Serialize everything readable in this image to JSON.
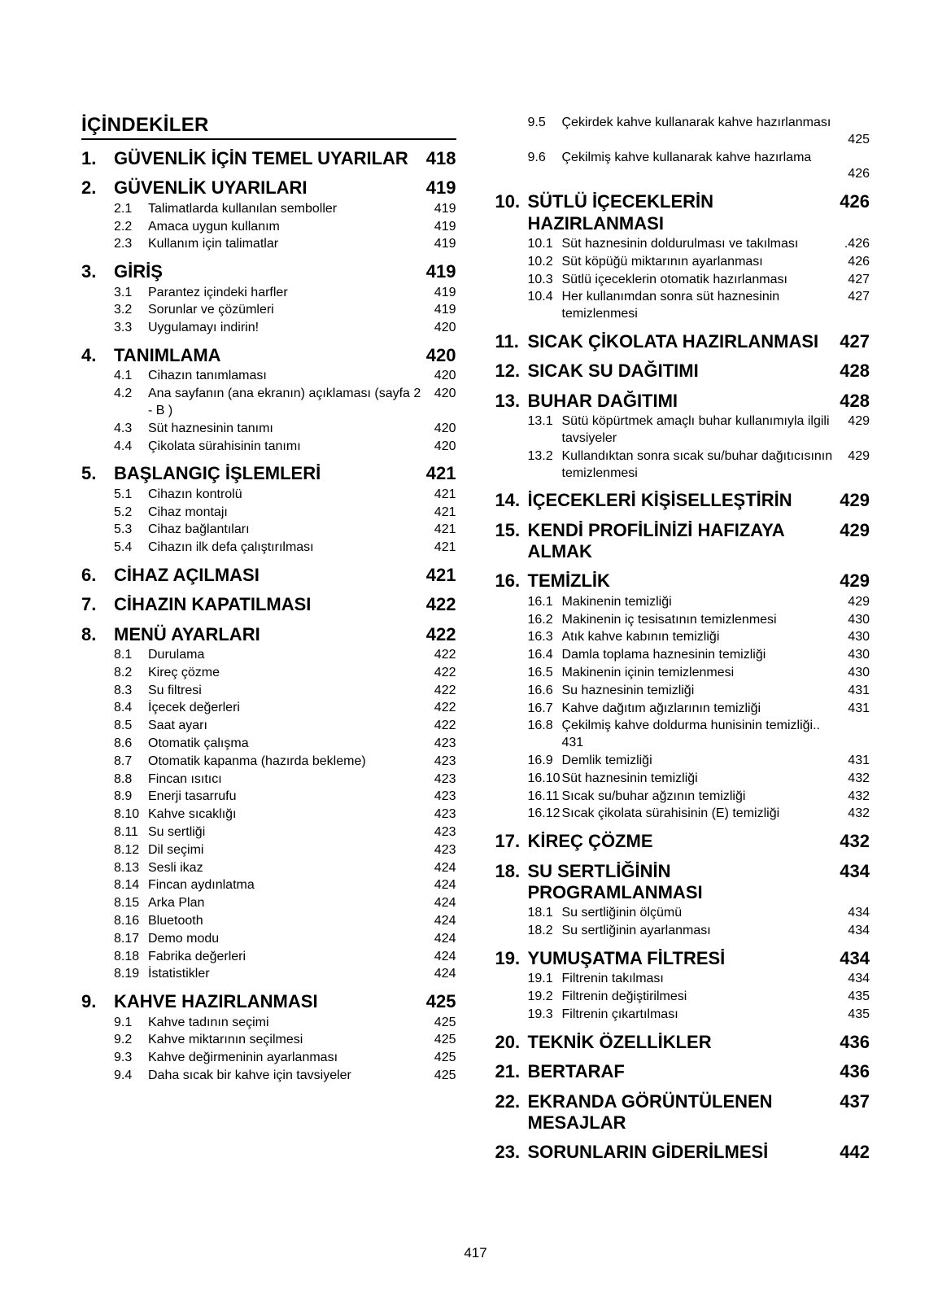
{
  "title": "İÇİNDEKİLER",
  "page_number": "417",
  "left": [
    {
      "n": "1.",
      "t": "GÜVENLİK İÇİN TEMEL UYARILAR",
      "p": "418"
    },
    {
      "n": "2.",
      "t": "GÜVENLİK UYARILARI",
      "p": "419",
      "items": [
        {
          "n": "2.1",
          "t": "Talimatlarda kullanılan semboller",
          "p": "419"
        },
        {
          "n": "2.2",
          "t": "Amaca uygun kullanım",
          "p": "419"
        },
        {
          "n": "2.3",
          "t": "Kullanım için talimatlar",
          "p": "419"
        }
      ]
    },
    {
      "n": "3.",
      "t": "GİRİŞ",
      "p": "419",
      "items": [
        {
          "n": "3.1",
          "t": "Parantez içindeki harfler",
          "p": "419"
        },
        {
          "n": "3.2",
          "t": "Sorunlar ve çözümleri",
          "p": "419"
        },
        {
          "n": "3.3",
          "t": "Uygulamayı indirin!",
          "p": "420"
        }
      ]
    },
    {
      "n": "4.",
      "t": "TANIMLAMA",
      "p": "420",
      "items": [
        {
          "n": "4.1",
          "t": "Cihazın tanımlaması",
          "p": "420"
        },
        {
          "n": "4.2",
          "t": "Ana sayfanın (ana ekranın) açıklaması (sayfa 2 -     B  )",
          "p": "420"
        },
        {
          "n": "4.3",
          "t": "Süt haznesinin tanımı",
          "p": "420"
        },
        {
          "n": "4.4",
          "t": "Çikolata sürahisinin tanımı",
          "p": "420"
        }
      ]
    },
    {
      "n": "5.",
      "t": "BAŞLANGIÇ İŞLEMLERİ",
      "p": "421",
      "items": [
        {
          "n": "5.1",
          "t": "Cihazın kontrolü",
          "p": "421"
        },
        {
          "n": "5.2",
          "t": "Cihaz montajı",
          "p": "421"
        },
        {
          "n": "5.3",
          "t": "Cihaz bağlantıları",
          "p": "421"
        },
        {
          "n": "5.4",
          "t": "Cihazın ilk defa çalıştırılması",
          "p": "421"
        }
      ]
    },
    {
      "n": "6.",
      "t": "CİHAZ AÇILMASI",
      "p": "421"
    },
    {
      "n": "7.",
      "t": "CİHAZIN KAPATILMASI",
      "p": "422"
    },
    {
      "n": "8.",
      "t": "MENÜ AYARLARI",
      "p": "422",
      "items": [
        {
          "n": "8.1",
          "t": "Durulama",
          "p": "422"
        },
        {
          "n": "8.2",
          "t": "Kireç çözme",
          "p": "422"
        },
        {
          "n": "8.3",
          "t": "Su filtresi",
          "p": "422"
        },
        {
          "n": "8.4",
          "t": "İçecek değerleri",
          "p": "422"
        },
        {
          "n": "8.5",
          "t": "Saat ayarı",
          "p": "422"
        },
        {
          "n": "8.6",
          "t": "Otomatik çalışma",
          "p": "423"
        },
        {
          "n": "8.7",
          "t": "Otomatik kapanma (hazırda bekleme)",
          "p": "423"
        },
        {
          "n": "8.8",
          "t": "Fincan ısıtıcı",
          "p": "423"
        },
        {
          "n": "8.9",
          "t": "Enerji tasarrufu",
          "p": "423"
        },
        {
          "n": "8.10",
          "t": "Kahve sıcaklığı",
          "p": "423"
        },
        {
          "n": "8.11",
          "t": "Su sertliği",
          "p": "423"
        },
        {
          "n": "8.12",
          "t": "Dil seçimi",
          "p": "423"
        },
        {
          "n": "8.13",
          "t": "Sesli ikaz",
          "p": "424"
        },
        {
          "n": "8.14",
          "t": "Fincan aydınlatma",
          "p": "424"
        },
        {
          "n": "8.15",
          "t": "Arka Plan",
          "p": "424"
        },
        {
          "n": "8.16",
          "t": "Bluetooth",
          "p": "424"
        },
        {
          "n": "8.17",
          "t": "Demo modu",
          "p": "424"
        },
        {
          "n": "8.18",
          "t": "Fabrika değerleri",
          "p": "424"
        },
        {
          "n": "8.19",
          "t": "İstatistikler",
          "p": "424"
        }
      ]
    },
    {
      "n": "9.",
      "t": "KAHVE HAZIRLANMASI",
      "p": "425",
      "items": [
        {
          "n": "9.1",
          "t": "Kahve tadının seçimi",
          "p": "425"
        },
        {
          "n": "9.2",
          "t": "Kahve miktarının seçilmesi",
          "p": "425"
        },
        {
          "n": "9.3",
          "t": "Kahve değirmeninin ayarlanması",
          "p": "425"
        },
        {
          "n": "9.4",
          "t": "Daha sıcak bir kahve için tavsiyeler",
          "p": "425"
        }
      ]
    }
  ],
  "right_pre_items": [
    {
      "n": "9.5",
      "t": "Çekirdek kahve kullanarak kahve hazırlanması",
      "p": "425"
    },
    {
      "n": "9.6",
      "t": "Çekilmiş kahve kullanarak kahve hazırlama",
      "p": "426"
    }
  ],
  "right": [
    {
      "n": "10.",
      "t": "SÜTLÜ İÇECEKLERİN HAZIRLANMASI",
      "p": "426",
      "items": [
        {
          "n": "10.1",
          "t": "Süt haznesinin doldurulması ve takılması",
          "p": ".426"
        },
        {
          "n": "10.2",
          "t": "Süt köpüğü miktarının ayarlanması",
          "p": "426"
        },
        {
          "n": "10.3",
          "t": "Sütlü içeceklerin otomatik hazırlanması",
          "p": "427"
        },
        {
          "n": "10.4",
          "t": "Her kullanımdan sonra süt haznesinin temizlenmesi",
          "p": "427"
        }
      ]
    },
    {
      "n": "11.",
      "t": "SICAK ÇİKOLATA HAZIRLANMASI",
      "p": "427"
    },
    {
      "n": "12.",
      "t": "SICAK SU DAĞITIMI",
      "p": "428"
    },
    {
      "n": "13.",
      "t": "BUHAR DAĞITIMI",
      "p": "428",
      "items": [
        {
          "n": "13.1",
          "t": "Sütü köpürtmek amaçlı buhar kullanımıyla ilgili tavsiyeler",
          "p": "429"
        },
        {
          "n": "13.2",
          "t": "Kullandıktan sonra sıcak su/buhar dağıtıcısının temizlenmesi",
          "p": "429"
        }
      ]
    },
    {
      "n": "14.",
      "t": "İÇECEKLERİ KİŞİSELLEŞTİRİN",
      "p": "429"
    },
    {
      "n": "15.",
      "t": "KENDİ PROFİLİNİZİ HAFIZAYA ALMAK",
      "p": "429"
    },
    {
      "n": "16.",
      "t": "TEMİZLİK",
      "p": "429",
      "items": [
        {
          "n": "16.1",
          "t": "Makinenin temizliği",
          "p": "429"
        },
        {
          "n": "16.2",
          "t": "Makinenin iç tesisatının temizlenmesi",
          "p": "430"
        },
        {
          "n": "16.3",
          "t": "Atık kahve kabının temizliği",
          "p": "430"
        },
        {
          "n": "16.4",
          "t": "Damla toplama haznesinin temizliği",
          "p": "430"
        },
        {
          "n": "16.5",
          "t": "Makinenin içinin temizlenmesi",
          "p": "430"
        },
        {
          "n": "16.6",
          "t": "Su haznesinin temizliği",
          "p": "431"
        },
        {
          "n": "16.7",
          "t": "Kahve dağıtım ağızlarının temizliği",
          "p": "431"
        },
        {
          "n": "16.8",
          "t": "Çekilmiş kahve doldurma hunisinin temizliği",
          "p2": "431"
        },
        {
          "n": "16.9",
          "t": "Demlik temizliği",
          "p": "431"
        },
        {
          "n": "16.10",
          "t": "Süt haznesinin temizliği",
          "p": "432"
        },
        {
          "n": "16.11",
          "t": "Sıcak su/buhar ağzının temizliği",
          "p": "432"
        },
        {
          "n": "16.12",
          "t": "Sıcak çikolata sürahisinin (E) temizliği",
          "p": "432"
        }
      ]
    },
    {
      "n": "17.",
      "t": "KİREÇ ÇÖZME",
      "p": "432"
    },
    {
      "n": "18.",
      "t": "SU SERTLİĞİNİN PROGRAMLANMASI",
      "p": "434",
      "items": [
        {
          "n": "18.1",
          "t": "Su sertliğinin ölçümü",
          "p": "434"
        },
        {
          "n": "18.2",
          "t": "Su sertliğinin ayarlanması",
          "p": "434"
        }
      ]
    },
    {
      "n": "19.",
      "t": "YUMUŞATMA FİLTRESİ",
      "p": "434",
      "items": [
        {
          "n": "19.1",
          "t": "Filtrenin takılması",
          "p": "434"
        },
        {
          "n": "19.2",
          "t": "Filtrenin değiştirilmesi",
          "p": "435"
        },
        {
          "n": "19.3",
          "t": "Filtrenin çıkartılması",
          "p": "435"
        }
      ]
    },
    {
      "n": "20.",
      "t": "TEKNİK ÖZELLİKLER",
      "p": "436"
    },
    {
      "n": "21.",
      "t": "BERTARAF",
      "p": "436"
    },
    {
      "n": "22.",
      "t": "EKRANDA GÖRÜNTÜLENEN MESAJLAR",
      "p": "437"
    },
    {
      "n": "23.",
      "t": "SORUNLARIN GİDERİLMESİ",
      "p": "442"
    }
  ]
}
